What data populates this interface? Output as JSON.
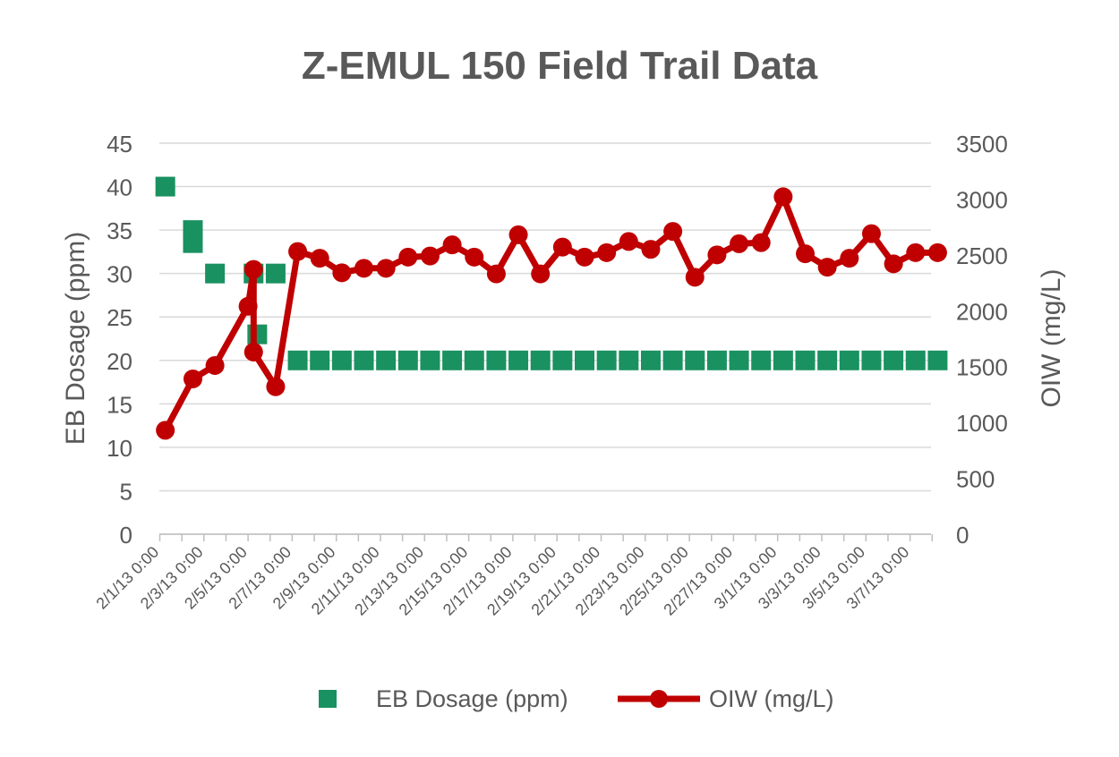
{
  "chart_data": {
    "type": "line",
    "title": "Z-EMUL 150 Field Trail Data",
    "y_left": {
      "label": "EB Dosage (ppm)",
      "min": 0,
      "max": 45,
      "step": 5
    },
    "y_right": {
      "label": "OIW (mg/L)",
      "min": 0,
      "max": 3500,
      "step": 500
    },
    "x_axis": {
      "start": "2013-02-01",
      "end": "2013-03-08",
      "tick_labels": [
        "2/1/13 0:00",
        "2/3/13 0:00",
        "2/5/13 0:00",
        "2/7/13 0:00",
        "2/9/13 0:00",
        "2/11/13 0:00",
        "2/13/13 0:00",
        "2/15/13 0:00",
        "2/17/13 0:00",
        "2/19/13 0:00",
        "2/21/13 0:00",
        "2/23/13 0:00",
        "2/25/13 0:00",
        "2/27/13 0:00",
        "3/1/13 0:00",
        "3/3/13 0:00",
        "3/5/13 0:00",
        "3/7/13 0:00"
      ]
    },
    "grid": true,
    "legend_position": "bottom",
    "series": [
      {
        "name": "EB Dosage (ppm)",
        "axis": "left",
        "style": "markers",
        "color": "#1a9160",
        "x": [
          "2013-02-01 06:00",
          "2013-02-02 12:00",
          "2013-02-02 12:00",
          "2013-02-03 12:00",
          "2013-02-05 06:00",
          "2013-02-05 10:00",
          "2013-02-06 06:00",
          "2013-02-07 06:00",
          "2013-02-08 06:00",
          "2013-02-09 06:00",
          "2013-02-10 06:00",
          "2013-02-11 06:00",
          "2013-02-12 06:00",
          "2013-02-13 06:00",
          "2013-02-14 06:00",
          "2013-02-15 06:00",
          "2013-02-16 06:00",
          "2013-02-17 06:00",
          "2013-02-18 06:00",
          "2013-02-19 06:00",
          "2013-02-20 06:00",
          "2013-02-21 06:00",
          "2013-02-22 06:00",
          "2013-02-23 06:00",
          "2013-02-24 06:00",
          "2013-02-25 06:00",
          "2013-02-26 06:00",
          "2013-02-27 06:00",
          "2013-02-28 06:00",
          "2013-03-01 06:00",
          "2013-03-02 06:00",
          "2013-03-03 06:00",
          "2013-03-04 06:00",
          "2013-03-05 06:00",
          "2013-03-06 06:00",
          "2013-03-07 06:00",
          "2013-03-08 06:00"
        ],
        "values": [
          40,
          35,
          33.5,
          30,
          30,
          23,
          30,
          20,
          20,
          20,
          20,
          20,
          20,
          20,
          20,
          20,
          20,
          20,
          20,
          20,
          20,
          20,
          20,
          20,
          20,
          20,
          20,
          20,
          20,
          20,
          20,
          20,
          20,
          20,
          20,
          20,
          20
        ]
      },
      {
        "name": "OIW (mg/L)",
        "axis": "right",
        "style": "line-markers",
        "color": "#c00000",
        "x": [
          "2013-02-01 06:00",
          "2013-02-02 12:00",
          "2013-02-03 12:00",
          "2013-02-05 00:00",
          "2013-02-05 06:00",
          "2013-02-05 06:00",
          "2013-02-06 06:00",
          "2013-02-07 06:00",
          "2013-02-08 06:00",
          "2013-02-09 06:00",
          "2013-02-10 06:00",
          "2013-02-11 06:00",
          "2013-02-12 06:00",
          "2013-02-13 06:00",
          "2013-02-14 06:00",
          "2013-02-15 06:00",
          "2013-02-16 06:00",
          "2013-02-17 06:00",
          "2013-02-18 06:00",
          "2013-02-19 06:00",
          "2013-02-20 06:00",
          "2013-02-21 06:00",
          "2013-02-22 06:00",
          "2013-02-23 06:00",
          "2013-02-24 06:00",
          "2013-02-25 06:00",
          "2013-02-26 06:00",
          "2013-02-27 06:00",
          "2013-02-28 06:00",
          "2013-03-01 06:00",
          "2013-03-02 06:00",
          "2013-03-03 06:00",
          "2013-03-04 06:00",
          "2013-03-05 06:00",
          "2013-03-06 06:00",
          "2013-03-07 06:00",
          "2013-03-08 06:00"
        ],
        "values": [
          930,
          1390,
          1510,
          2040,
          2370,
          1630,
          1320,
          2530,
          2470,
          2340,
          2380,
          2380,
          2480,
          2490,
          2590,
          2480,
          2330,
          2680,
          2330,
          2570,
          2480,
          2520,
          2620,
          2550,
          2710,
          2300,
          2500,
          2600,
          2610,
          3020,
          2510,
          2390,
          2470,
          2690,
          2420,
          2520,
          2520
        ]
      }
    ]
  }
}
